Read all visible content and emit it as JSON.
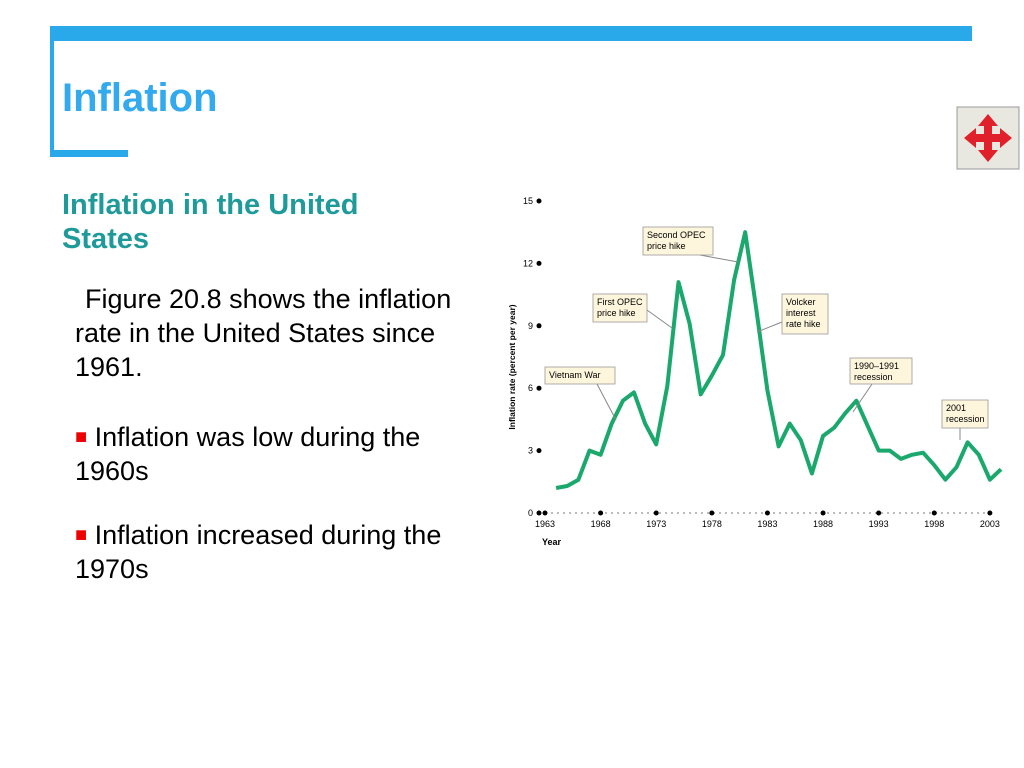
{
  "slide": {
    "title": "Inflation",
    "subtitle": "Inflation in the United States",
    "intro": "Figure 20.8 shows the inflation rate in the United States since 1961.",
    "bullets": [
      "Inflation was low during the 1960s",
      "Inflation increased during the 1970s"
    ]
  },
  "chart_data": {
    "type": "line",
    "x_label": "Year",
    "y_label": "Inflation rate (percent per year)",
    "x": [
      1964,
      1965,
      1966,
      1967,
      1968,
      1969,
      1970,
      1971,
      1972,
      1973,
      1974,
      1975,
      1976,
      1977,
      1978,
      1979,
      1980,
      1981,
      1982,
      1983,
      1984,
      1985,
      1986,
      1987,
      1988,
      1989,
      1990,
      1991,
      1992,
      1993,
      1994,
      1995,
      1996,
      1997,
      1998,
      1999,
      2000,
      2001,
      2002,
      2003,
      2004
    ],
    "series": [
      {
        "color": "#1aa86c",
        "values": [
          1.2,
          1.3,
          1.6,
          3.0,
          2.8,
          4.3,
          5.4,
          5.8,
          4.3,
          3.3,
          6.1,
          11.1,
          9.1,
          5.7,
          6.6,
          7.6,
          11.2,
          13.5,
          9.8,
          5.9,
          3.2,
          4.3,
          3.5,
          1.9,
          3.7,
          4.1,
          4.8,
          5.4,
          4.2,
          3.0,
          3.0,
          2.6,
          2.8,
          2.9,
          2.3,
          1.6,
          2.2,
          3.4,
          2.8,
          1.6,
          2.1
        ]
      }
    ],
    "xlim": [
      1963,
      2004
    ],
    "xticks": [
      1963,
      1968,
      1973,
      1978,
      1983,
      1988,
      1993,
      1998,
      2003
    ],
    "ylim": [
      0,
      15
    ],
    "yticks": [
      0,
      3,
      6,
      9,
      12,
      15
    ],
    "annotations": [
      [
        "Vietnam War"
      ],
      [
        "First OPEC",
        "price hike"
      ],
      [
        "Second OPEC",
        "price hike"
      ],
      [
        "Volcker",
        "interest",
        "rate hike"
      ],
      [
        "1990–1991",
        "recession"
      ],
      [
        "2001",
        "recession"
      ]
    ]
  }
}
